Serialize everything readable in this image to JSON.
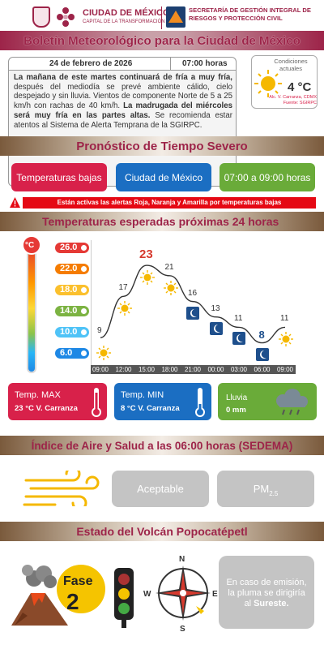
{
  "header": {
    "cdmx_title": "CIUDAD DE MÉXICO",
    "cdmx_sub": "CAPITAL DE LA TRANSFORMACIÓN",
    "secretaria": "SECRETARÍA DE GESTIÓN INTEGRAL DE RIESGOS Y PROTECCIÓN CIVIL",
    "bulletin_title": "Boletín Meteorológico para la Ciudad de México"
  },
  "info": {
    "date": "24 de febrero de 2026",
    "time": "07:00 horas",
    "p1": "La mañana de este martes continuará de fría a muy fría,",
    "p2": " después del mediodía se prevé ambiente cálido, cielo despejado y sin lluvia. Vientos de componente Norte de 5 a 25 km/h con rachas de 40 km/h. ",
    "p3": "La madrugada del miércoles será muy fría en las partes altas.",
    "p4": " Se recomienda estar atentos al Sistema de Alerta Temprana de la SGIRPC."
  },
  "current": {
    "label": "Condiciones actuales",
    "temp": "4 °C",
    "station": "Alc. V. Carranza, CDMX",
    "source": "Fuente: SGIRPC"
  },
  "severe": {
    "title": "Pronóstico de Tiempo Severo",
    "btn_type": "Temperaturas bajas",
    "btn_place": "Ciudad de México",
    "btn_time": "07:00 a 09:00 horas",
    "alert": "Están activas las alertas Roja, Naranja y Amarilla por temperaturas bajas"
  },
  "temps": {
    "title": "Temperaturas esperadas próximas 24 horas",
    "scale_unit": "°C",
    "ylabels": [
      "26.0",
      "22.0",
      "18.0",
      "14.0",
      "10.0",
      "6.0"
    ],
    "max_label": "Temp. MAX",
    "max_value": "23 °C  V. Carranza",
    "min_label": "Temp. MIN",
    "min_value": "8 °C  V. Carranza",
    "rain_label": "Lluvia",
    "rain_value": "0 mm"
  },
  "chart_data": {
    "type": "line",
    "x": [
      "09:00",
      "12:00",
      "15:00",
      "18:00",
      "21:00",
      "00:00",
      "03:00",
      "06:00",
      "09:00"
    ],
    "series": [
      {
        "values": [
          9,
          17,
          23,
          21,
          16,
          13,
          11,
          8,
          11
        ]
      }
    ],
    "y_ticks": [
      "26.0",
      "22.0",
      "18.0",
      "14.0",
      "10.0",
      "6.0"
    ],
    "ylim": [
      4,
      26
    ],
    "icons": [
      "sun",
      "sun",
      "sun",
      "sun",
      "moon",
      "moon",
      "moon",
      "moon",
      "sun"
    ],
    "highlight": {
      "max_index": 2,
      "min_index": 7,
      "max_color": "#d63a2e",
      "min_color": "#1e4f8c"
    }
  },
  "air": {
    "title": "Índice de Aire y Salud a las 06:00 horas (SEDEMA)",
    "quality": "Aceptable",
    "pollutant": "PM",
    "pollutant_sub": "2.5"
  },
  "volcano": {
    "title": "Estado del Volcán Popocatépetl",
    "fase_label": "Fase",
    "fase_num": "2",
    "compass_n": "N",
    "compass_s": "S",
    "compass_e": "E",
    "compass_w": "W",
    "msg1": "En caso de emisión, la pluma se dirigiría al ",
    "msg2": "Sureste."
  },
  "colors": {
    "brand": "#9d2449",
    "red": "#d8214a",
    "blue": "#1b6ec2",
    "green": "#6aab39",
    "alert": "#e50914"
  }
}
